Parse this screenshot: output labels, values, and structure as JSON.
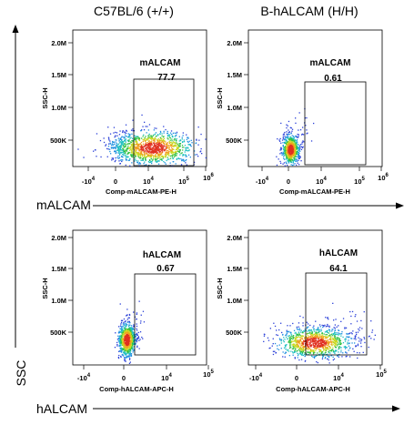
{
  "column_headers": [
    "C57BL/6 (+/+)",
    "B-hALCAM (H/H)"
  ],
  "row_axis_labels": [
    "mALCAM",
    "hALCAM"
  ],
  "left_axis_label": "SSC",
  "chart_data": [
    {
      "type": "scatter",
      "genotype": "C57BL/6 (+/+)",
      "stain": "mALCAM",
      "xlabel": "Comp-mALCAM-PE-H",
      "ylabel": "SSC-H",
      "x_scale": "biexponential",
      "x_ticks": [
        "-10^4",
        "0",
        "10^4",
        "10^5",
        "10^6"
      ],
      "y_ticks": [
        "500K",
        "1.0M",
        "1.5M",
        "2.0M"
      ],
      "ylim": [
        0,
        2100000
      ],
      "gate": {
        "name": "mALCAM",
        "percent": "77.7",
        "x_range": [
          "10^3",
          "10^6"
        ],
        "y_range": [
          0,
          1500000
        ]
      },
      "population": "broad cloud spanning 10^3 to 10^5 on x, 150K to 700K SSC"
    },
    {
      "type": "scatter",
      "genotype": "B-hALCAM (H/H)",
      "stain": "mALCAM",
      "xlabel": "Comp-mALCAM-PE-H",
      "ylabel": "SSC-H",
      "x_scale": "biexponential",
      "x_ticks": [
        "-10^4",
        "0",
        "10^4",
        "10^5",
        "10^6"
      ],
      "y_ticks": [
        "500K",
        "1.0M",
        "1.5M",
        "2.0M"
      ],
      "ylim": [
        0,
        2100000
      ],
      "gate": {
        "name": "mALCAM",
        "percent": "0.61",
        "x_range": [
          "10^3",
          "10^6"
        ],
        "y_range": [
          0,
          1500000
        ]
      },
      "population": "tight cluster near 0 on x, 150K to 500K SSC"
    },
    {
      "type": "scatter",
      "genotype": "C57BL/6 (+/+)",
      "stain": "hALCAM",
      "xlabel": "Comp-hALCAM-APC-H",
      "ylabel": "SSC-H",
      "x_scale": "biexponential",
      "x_ticks": [
        "-10^4",
        "0",
        "10^4",
        "10^5"
      ],
      "y_ticks": [
        "500K",
        "1.0M",
        "1.5M",
        "2.0M"
      ],
      "ylim": [
        0,
        2100000
      ],
      "gate": {
        "name": "hALCAM",
        "percent": "0.67",
        "x_range": [
          "10^3",
          "10^5"
        ],
        "y_range": [
          0,
          1500000
        ]
      },
      "population": "tight cluster near 0 on x, 150K to 500K SSC"
    },
    {
      "type": "scatter",
      "genotype": "B-hALCAM (H/H)",
      "stain": "hALCAM",
      "xlabel": "Comp-hALCAM-APC-H",
      "ylabel": "SSC-H",
      "x_scale": "biexponential",
      "x_ticks": [
        "-10^4",
        "0",
        "10^4",
        "10^5"
      ],
      "y_ticks": [
        "500K",
        "1.0M",
        "1.5M",
        "2.0M"
      ],
      "ylim": [
        0,
        2100000
      ],
      "gate": {
        "name": "hALCAM",
        "percent": "64.1",
        "x_range": [
          "10^3",
          "10^5"
        ],
        "y_range": [
          0,
          1500000
        ]
      },
      "population": "broad cloud spanning 10^3 to 10^5 on x, 150K to 600K SSC"
    }
  ]
}
